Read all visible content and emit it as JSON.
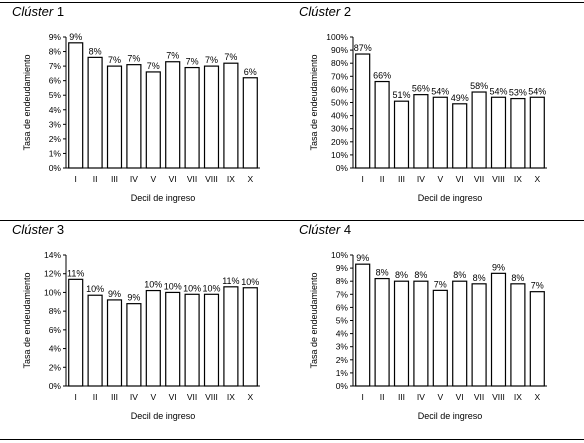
{
  "chart_data": [
    {
      "type": "bar",
      "panel_title": "Clúster 1",
      "title_label": "Clúster",
      "title_num": "1",
      "xlabel": "Decil de ingreso",
      "ylabel": "Tasa de endeudamiento",
      "categories": [
        "I",
        "II",
        "III",
        "IV",
        "V",
        "VI",
        "VII",
        "VIII",
        "IX",
        "X"
      ],
      "values": [
        8.6,
        7.6,
        7.0,
        7.1,
        6.6,
        7.3,
        6.9,
        7.0,
        7.2,
        6.2
      ],
      "data_labels": [
        "9%",
        "8%",
        "7%",
        "7%",
        "7%",
        "7%",
        "7%",
        "7%",
        "7%",
        "6%"
      ],
      "ylim": [
        0,
        9
      ],
      "yticks": [
        0,
        1,
        2,
        3,
        4,
        5,
        6,
        7,
        8,
        9
      ],
      "ytick_labels": [
        "0%",
        "1%",
        "2%",
        "3%",
        "4%",
        "5%",
        "6%",
        "7%",
        "8%",
        "9%"
      ],
      "grid": false
    },
    {
      "type": "bar",
      "panel_title": "Clúster 2",
      "title_label": "Clúster",
      "title_num": "2",
      "xlabel": "Decil de ingreso",
      "ylabel": "Tasa de endeudamiento",
      "categories": [
        "I",
        "II",
        "III",
        "IV",
        "V",
        "VI",
        "VII",
        "VIII",
        "IX",
        "X"
      ],
      "values": [
        87,
        66,
        51,
        56,
        54,
        49,
        58,
        54,
        53,
        54
      ],
      "data_labels": [
        "87%",
        "66%",
        "51%",
        "56%",
        "54%",
        "49%",
        "58%",
        "54%",
        "53%",
        "54%"
      ],
      "ylim": [
        0,
        100
      ],
      "yticks": [
        0,
        10,
        20,
        30,
        40,
        50,
        60,
        70,
        80,
        90,
        100
      ],
      "ytick_labels": [
        "0%",
        "10%",
        "20%",
        "30%",
        "40%",
        "50%",
        "60%",
        "70%",
        "80%",
        "90%",
        "100%"
      ],
      "grid": false
    },
    {
      "type": "bar",
      "panel_title": "Clúster 3",
      "title_label": "Clúster",
      "title_num": "3",
      "xlabel": "Decil de ingreso",
      "ylabel": "Tasa de endeudamiento",
      "categories": [
        "I",
        "II",
        "III",
        "IV",
        "V",
        "VI",
        "VII",
        "VIII",
        "IX",
        "X"
      ],
      "values": [
        11.4,
        9.7,
        9.2,
        8.8,
        10.2,
        10.0,
        9.8,
        9.8,
        10.6,
        10.5
      ],
      "data_labels": [
        "11%",
        "10%",
        "9%",
        "9%",
        "10%",
        "10%",
        "10%",
        "10%",
        "11%",
        "10%"
      ],
      "ylim": [
        0,
        14
      ],
      "yticks": [
        0,
        2,
        4,
        6,
        8,
        10,
        12,
        14
      ],
      "ytick_labels": [
        "0%",
        "2%",
        "4%",
        "6%",
        "8%",
        "10%",
        "12%",
        "14%"
      ],
      "grid": false
    },
    {
      "type": "bar",
      "panel_title": "Clúster 4",
      "title_label": "Clúster",
      "title_num": "4",
      "xlabel": "Decil de ingreso",
      "ylabel": "Tasa de endeudamiento",
      "categories": [
        "I",
        "II",
        "III",
        "IV",
        "V",
        "VI",
        "VII",
        "VIII",
        "IX",
        "X"
      ],
      "values": [
        9.3,
        8.2,
        8.0,
        8.0,
        7.3,
        8.0,
        7.8,
        8.6,
        7.8,
        7.2
      ],
      "data_labels": [
        "9%",
        "8%",
        "8%",
        "8%",
        "7%",
        "8%",
        "8%",
        "9%",
        "8%",
        "7%"
      ],
      "ylim": [
        0,
        10
      ],
      "yticks": [
        0,
        1,
        2,
        3,
        4,
        5,
        6,
        7,
        8,
        9,
        10
      ],
      "ytick_labels": [
        "0%",
        "1%",
        "2%",
        "3%",
        "4%",
        "5%",
        "6%",
        "7%",
        "8%",
        "9%",
        "10%"
      ],
      "grid": false
    }
  ]
}
